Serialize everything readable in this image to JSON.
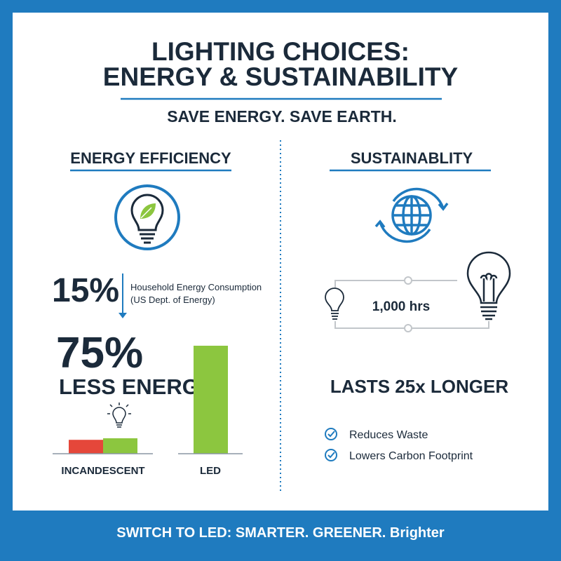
{
  "title": {
    "line1": "LIGHTING CHOICES:",
    "line2": "ENERGY & SUSTAINABILITY"
  },
  "subtitle": "SAVE ENERGY. SAVE EARTH.",
  "left": {
    "heading": "ENERGY EFFICIENCY",
    "icon": "lightbulb-leaf-icon",
    "stat1": {
      "value": "15%",
      "line1": "Household Energy Consumption",
      "line2": "(US Dept. of Energy)"
    },
    "stat2": {
      "value": "75%",
      "label": "LESS ENERGY"
    },
    "chart_data": {
      "type": "bar",
      "categories": [
        "INCANDESCENT",
        "LED"
      ],
      "note": "",
      "groups": [
        {
          "label": "INCANDESCENT",
          "bars": [
            {
              "color": "#e5473a",
              "value": 4.5
            },
            {
              "color": "#8cc63f",
              "value": 5
            }
          ]
        },
        {
          "label": "LED",
          "bars": [
            {
              "color": "#8cc63f",
              "value": 35
            }
          ]
        }
      ],
      "ylim": [
        0,
        40
      ]
    }
  },
  "right": {
    "heading": "SUSTAINABLITY",
    "icon": "globe-recycle-icon",
    "hours": "1,000 hrs",
    "claim": "LASTS 25x LONGER",
    "benefits": [
      "Reduces Waste",
      "Lowers Carbon Footprint"
    ]
  },
  "footer": "SWITCH TO LED: SMARTER. GREENER. Brighter",
  "colors": {
    "blue": "#1f7bbf",
    "navy": "#1b2a3a",
    "green": "#8cc63f",
    "red": "#e5473a"
  }
}
